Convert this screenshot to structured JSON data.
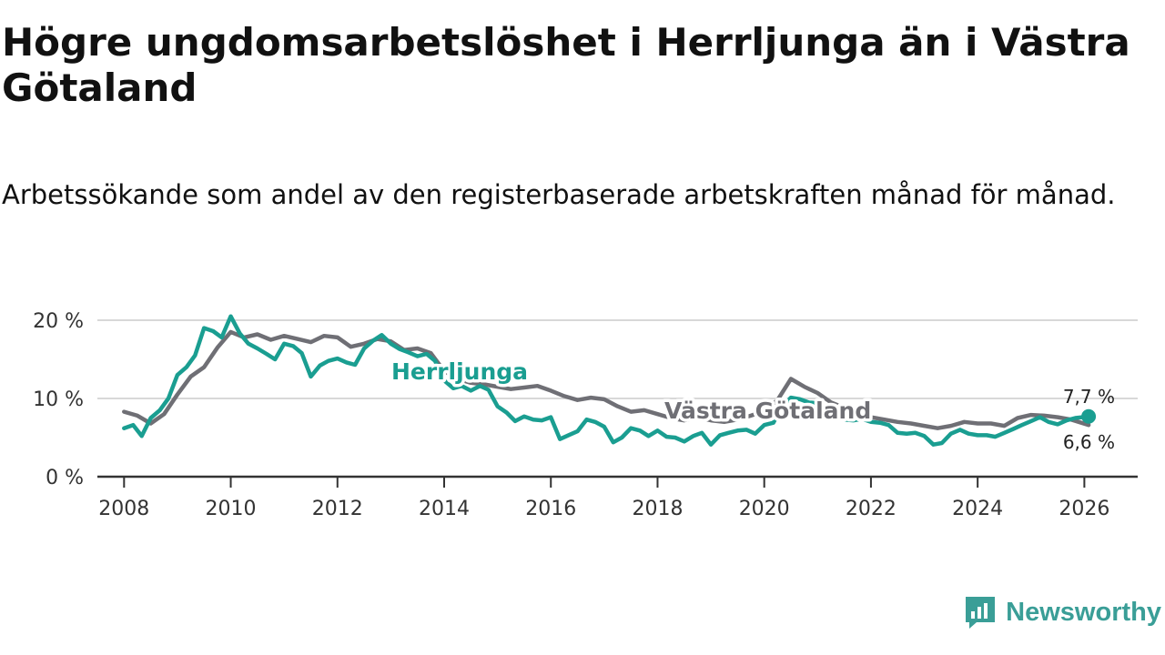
{
  "title": "Högre ungdomsarbetslöshet i Herrljunga än i Västra Götaland",
  "subtitle": "Arbetssökande som andel av den registerbaserade arbetskraften månad för månad.",
  "brand": "Newsworthy",
  "colors": {
    "herrljunga": "#1a9e91",
    "vastra": "#6f6f75",
    "grid": "#d8d8d8",
    "axis": "#333333",
    "brand": "#3a9e97"
  },
  "chart_data": {
    "type": "line",
    "title": "Högre ungdomsarbetslöshet i Herrljunga än i Västra Götaland",
    "xlabel": "",
    "ylabel": "",
    "xlim": [
      2007.5,
      2027.0
    ],
    "ylim": [
      0,
      20
    ],
    "y_ticks": [
      0,
      10,
      20
    ],
    "y_tick_labels": [
      "0 %",
      "10 %",
      "20 %"
    ],
    "x_ticks": [
      2008,
      2010,
      2012,
      2014,
      2016,
      2018,
      2020,
      2022,
      2024,
      2026
    ],
    "x_tick_labels": [
      "2008",
      "2010",
      "2012",
      "2014",
      "2016",
      "2018",
      "2020",
      "2022",
      "2024",
      "2026"
    ],
    "grid": true,
    "series": [
      {
        "name": "Västra Götaland",
        "color": "#6f6f75",
        "end_label": "6,6 %",
        "x": [
          2008.0,
          2008.25,
          2008.5,
          2008.75,
          2009.0,
          2009.25,
          2009.5,
          2009.75,
          2010.0,
          2010.25,
          2010.5,
          2010.75,
          2011.0,
          2011.25,
          2011.5,
          2011.75,
          2012.0,
          2012.25,
          2012.5,
          2012.75,
          2013.0,
          2013.25,
          2013.5,
          2013.75,
          2014.0,
          2014.25,
          2014.5,
          2014.75,
          2015.0,
          2015.25,
          2015.5,
          2015.75,
          2016.0,
          2016.25,
          2016.5,
          2016.75,
          2017.0,
          2017.25,
          2017.5,
          2017.75,
          2018.0,
          2018.25,
          2018.5,
          2018.75,
          2019.0,
          2019.25,
          2019.5,
          2019.75,
          2020.0,
          2020.25,
          2020.5,
          2020.75,
          2021.0,
          2021.25,
          2021.5,
          2021.75,
          2022.0,
          2022.25,
          2022.5,
          2022.75,
          2023.0,
          2023.25,
          2023.5,
          2023.75,
          2024.0,
          2024.25,
          2024.5,
          2024.75,
          2025.0,
          2025.25,
          2025.5,
          2025.75,
          2026.08
        ],
        "values": [
          8.3,
          7.8,
          6.8,
          8.0,
          10.5,
          12.8,
          14.0,
          16.5,
          18.5,
          17.8,
          18.2,
          17.5,
          18.0,
          17.6,
          17.2,
          18.0,
          17.8,
          16.6,
          17.0,
          17.6,
          17.3,
          16.2,
          16.4,
          15.8,
          13.5,
          12.5,
          12.0,
          11.8,
          11.5,
          11.2,
          11.4,
          11.6,
          11.0,
          10.3,
          9.8,
          10.1,
          9.9,
          9.0,
          8.3,
          8.5,
          8.0,
          7.5,
          7.2,
          7.6,
          7.2,
          7.0,
          7.3,
          7.8,
          8.4,
          9.8,
          12.5,
          11.5,
          10.7,
          9.5,
          8.8,
          8.2,
          7.6,
          7.3,
          7.0,
          6.8,
          6.5,
          6.2,
          6.5,
          7.0,
          6.8,
          6.8,
          6.5,
          7.5,
          7.9,
          7.8,
          7.6,
          7.3,
          6.6
        ]
      },
      {
        "name": "Herrljunga",
        "color": "#1a9e91",
        "end_label": "7,7 %",
        "x": [
          2008.0,
          2008.17,
          2008.33,
          2008.5,
          2008.67,
          2008.83,
          2009.0,
          2009.17,
          2009.33,
          2009.5,
          2009.67,
          2009.83,
          2010.0,
          2010.17,
          2010.33,
          2010.5,
          2010.67,
          2010.83,
          2011.0,
          2011.17,
          2011.33,
          2011.5,
          2011.67,
          2011.83,
          2012.0,
          2012.17,
          2012.33,
          2012.5,
          2012.67,
          2012.83,
          2013.0,
          2013.17,
          2013.33,
          2013.5,
          2013.67,
          2013.83,
          2014.0,
          2014.17,
          2014.33,
          2014.5,
          2014.67,
          2014.83,
          2015.0,
          2015.17,
          2015.33,
          2015.5,
          2015.67,
          2015.83,
          2016.0,
          2016.17,
          2016.33,
          2016.5,
          2016.67,
          2016.83,
          2017.0,
          2017.17,
          2017.33,
          2017.5,
          2017.67,
          2017.83,
          2018.0,
          2018.17,
          2018.33,
          2018.5,
          2018.67,
          2018.83,
          2019.0,
          2019.17,
          2019.33,
          2019.5,
          2019.67,
          2019.83,
          2020.0,
          2020.17,
          2020.33,
          2020.5,
          2020.67,
          2020.83,
          2021.0,
          2021.17,
          2021.33,
          2021.5,
          2021.67,
          2021.83,
          2022.0,
          2022.17,
          2022.33,
          2022.5,
          2022.67,
          2022.83,
          2023.0,
          2023.17,
          2023.33,
          2023.5,
          2023.67,
          2023.83,
          2024.0,
          2024.17,
          2024.33,
          2024.5,
          2024.67,
          2024.83,
          2025.0,
          2025.17,
          2025.33,
          2025.5,
          2025.67,
          2025.83,
          2026.08
        ],
        "values": [
          6.2,
          6.6,
          5.2,
          7.5,
          8.5,
          10.0,
          13.0,
          14.0,
          15.5,
          19.0,
          18.6,
          17.8,
          20.5,
          18.3,
          17.0,
          16.4,
          15.7,
          15.0,
          17.0,
          16.7,
          15.8,
          12.8,
          14.2,
          14.8,
          15.1,
          14.6,
          14.3,
          16.4,
          17.4,
          18.1,
          17.0,
          16.3,
          15.9,
          15.4,
          15.7,
          14.8,
          12.3,
          11.3,
          11.6,
          11.0,
          11.6,
          11.1,
          9.0,
          8.2,
          7.1,
          7.7,
          7.3,
          7.2,
          7.6,
          4.8,
          5.3,
          5.8,
          7.3,
          7.0,
          6.4,
          4.4,
          5.0,
          6.2,
          5.9,
          5.2,
          5.9,
          5.1,
          5.0,
          4.5,
          5.2,
          5.6,
          4.1,
          5.3,
          5.6,
          5.9,
          6.0,
          5.5,
          6.6,
          6.9,
          8.9,
          10.1,
          9.9,
          9.5,
          9.4,
          8.6,
          7.8,
          7.3,
          7.2,
          7.4,
          7.0,
          6.9,
          6.6,
          5.6,
          5.5,
          5.6,
          5.2,
          4.1,
          4.3,
          5.5,
          6.0,
          5.5,
          5.3,
          5.3,
          5.1,
          5.6,
          6.1,
          6.6,
          7.1,
          7.6,
          7.0,
          6.7,
          7.2,
          7.5,
          7.7
        ]
      }
    ]
  }
}
